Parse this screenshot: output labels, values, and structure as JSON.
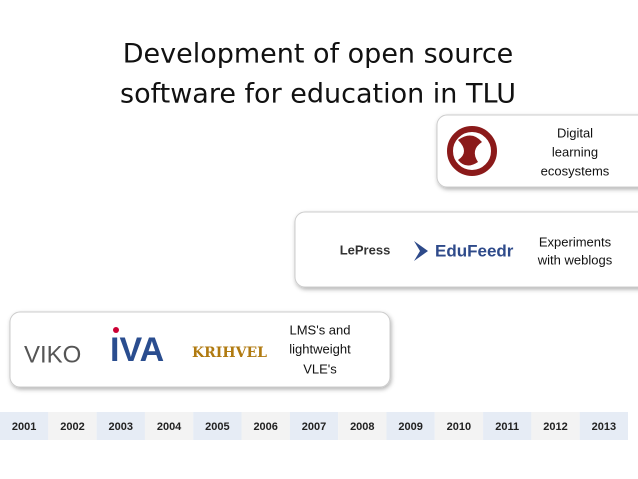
{
  "header": {
    "title": [
      "Development of open source",
      "software for education in TLU"
    ]
  },
  "boxes": [
    {
      "logos": [
        "VIKO",
        "IVA",
        "KRIHVEL"
      ],
      "label": [
        "LMS's and",
        "lightweight",
        "VLE's"
      ]
    },
    {
      "logos": [
        "LePress",
        "EduFeedr"
      ],
      "label": [
        "Experiments",
        "with weblogs"
      ]
    },
    {
      "label": [
        "Digital",
        "learning",
        "ecosystems"
      ]
    }
  ],
  "timeline": [
    "2001",
    "2002",
    "2003",
    "2004",
    "2005",
    "2006",
    "2007",
    "2008",
    "2009",
    "2010",
    "2011",
    "2012",
    "2013"
  ]
}
